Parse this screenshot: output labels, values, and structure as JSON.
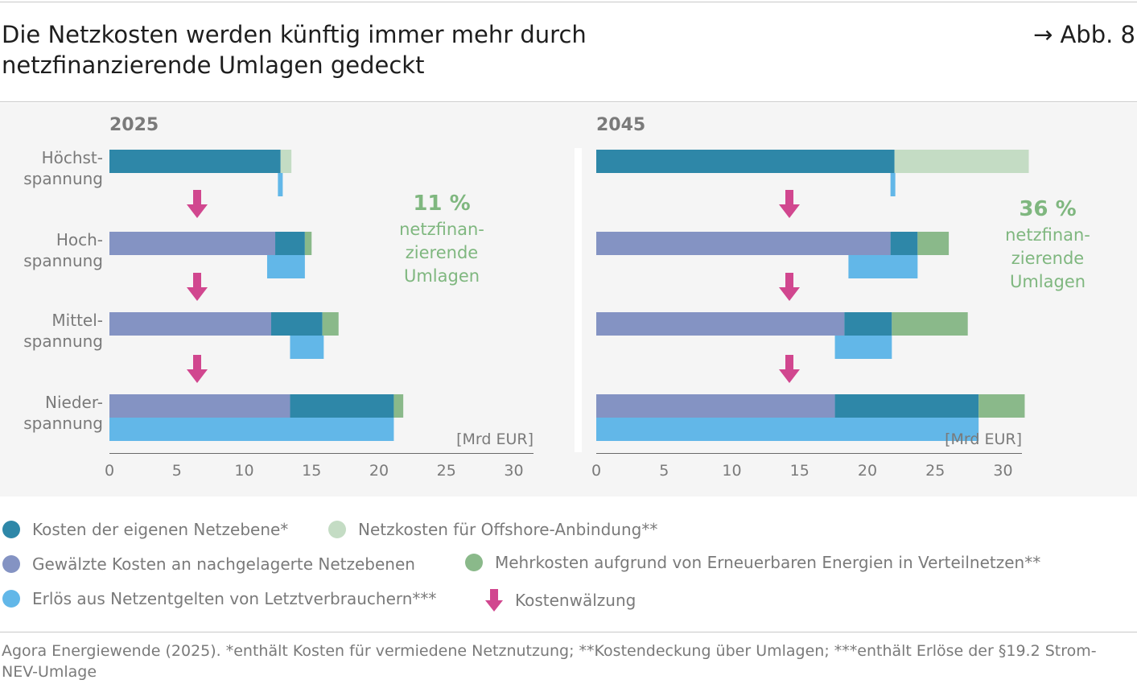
{
  "header": {
    "title_line1": "Die Netzkosten werden künftig immer mehr durch",
    "title_line2": "netzfinanzierende Umlagen gedeckt",
    "figure_ref": "→ Abb. 8"
  },
  "colors": {
    "own_level": "#2e87a8",
    "offshore": "#c4dcc4",
    "rolled_over": "#8493c3",
    "renewables_extra": "#8ab98a",
    "revenue": "#62b7e8",
    "arrow": "#d1478f",
    "share_text": "#7fb77f",
    "axis_text": "#7a7a7a",
    "panel_bg": "#f5f5f5"
  },
  "chart_data": [
    {
      "type": "bar",
      "orientation": "horizontal-stacked",
      "title": "2025",
      "unit_label": "[Mrd EUR]",
      "xlim": [
        0,
        31.5
      ],
      "xticks": [
        0,
        5,
        10,
        15,
        20,
        25,
        30
      ],
      "categories": [
        "Höchst-|spannung",
        "Hoch-|spannung",
        "Mittel-|spannung",
        "Nieder-|spannung"
      ],
      "series": [
        {
          "name": "Gewälzte Kosten an nachgelagerte Netzebenen",
          "color_key": "rolled_over",
          "values": [
            0,
            12.3,
            12.0,
            13.4
          ]
        },
        {
          "name": "Kosten der eigenen Netzebene*",
          "color_key": "own_level",
          "values": [
            12.7,
            2.2,
            3.8,
            7.7
          ]
        },
        {
          "name": "Netzkosten für Offshore-Anbindung**",
          "color_key": "offshore",
          "values": [
            0.8,
            0,
            0,
            0
          ]
        },
        {
          "name": "Mehrkosten aufgrund von Erneuerbaren Energien in Verteilnetzen**",
          "color_key": "renewables_extra",
          "values": [
            0,
            0.5,
            1.2,
            0.7
          ]
        }
      ],
      "revenue": {
        "name": "Erlös aus Netzentgelten von Letztverbrauchern***",
        "color_key": "revenue",
        "start": [
          12.5,
          11.7,
          13.4,
          0
        ],
        "end": [
          12.8,
          14.5,
          15.9,
          21.1
        ]
      },
      "annotation": {
        "value": "11 %",
        "line1": "netzfinan-",
        "line2": "zierende",
        "line3": "Umlagen"
      }
    },
    {
      "type": "bar",
      "orientation": "horizontal-stacked",
      "title": "2045",
      "unit_label": "[Mrd EUR]",
      "xlim": [
        0,
        31.5
      ],
      "xticks": [
        0,
        5,
        10,
        15,
        20,
        25,
        30
      ],
      "categories": [
        "Höchst-|spannung",
        "Hoch-|spannung",
        "Mittel-|spannung",
        "Nieder-|spannung"
      ],
      "series": [
        {
          "name": "Gewälzte Kosten an nachgelagerte Netzebenen",
          "color_key": "rolled_over",
          "values": [
            0,
            21.7,
            18.3,
            17.6
          ]
        },
        {
          "name": "Kosten der eigenen Netzebene*",
          "color_key": "own_level",
          "values": [
            22.0,
            2.0,
            3.5,
            10.6
          ]
        },
        {
          "name": "Netzkosten für Offshore-Anbindung**",
          "color_key": "offshore",
          "values": [
            9.9,
            0,
            0,
            0
          ]
        },
        {
          "name": "Mehrkosten aufgrund von Erneuerbaren Energien in Verteilnetzen**",
          "color_key": "renewables_extra",
          "values": [
            0,
            2.3,
            5.6,
            3.4
          ]
        }
      ],
      "revenue": {
        "name": "Erlös aus Netzentgelten von Letztverbrauchern***",
        "color_key": "revenue",
        "start": [
          21.7,
          18.6,
          17.6,
          0
        ],
        "end": [
          22.0,
          23.7,
          21.8,
          28.2
        ]
      },
      "annotation": {
        "value": "36 %",
        "line1": "netzfinan-",
        "line2": "zierende",
        "line3": "Umlagen"
      }
    }
  ],
  "legend": {
    "own_level": "Kosten der eigenen Netzebene*",
    "offshore": "Netzkosten für Offshore-Anbindung**",
    "rolled_over": "Gewälzte Kosten an nachgelagerte Netzebenen",
    "renewables_extra": "Mehrkosten aufgrund von Erneuerbaren Energien in Verteilnetzen**",
    "revenue": "Erlös aus Netzentgelten von Letztverbrauchern***",
    "arrow": "Kostenwälzung"
  },
  "source": {
    "line1": "Agora Energiewende (2025). *enthält Kosten für vermiedene Netznutzung; **Kostendeckung über Umlagen; ***enthält Erlöse der §19.2 Strom-",
    "line2": "NEV-Umlage"
  }
}
